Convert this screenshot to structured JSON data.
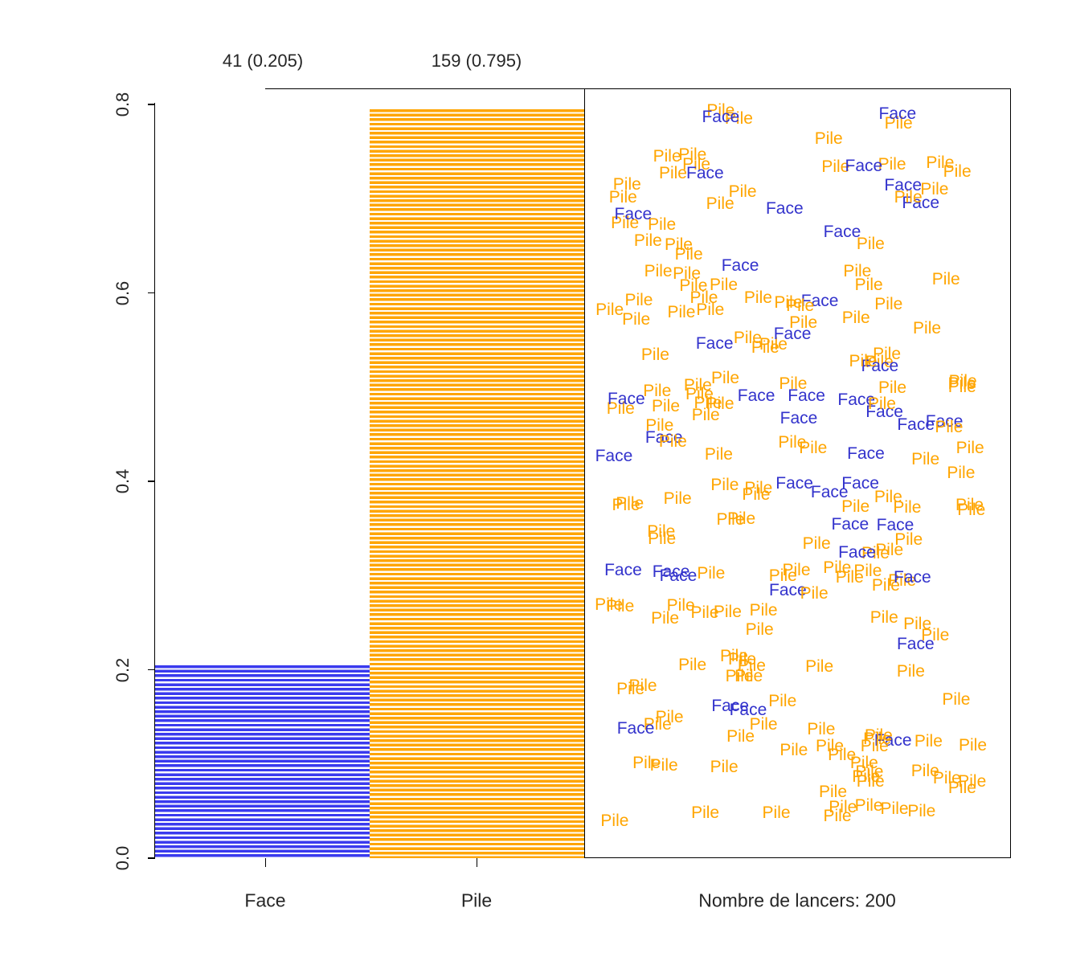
{
  "chart_data": {
    "type": "bar",
    "title": "",
    "categories": [
      "Face",
      "Pile"
    ],
    "values": [
      0.205,
      0.795
    ],
    "counts": [
      41,
      159
    ],
    "bar_labels": [
      "41 (0.205)",
      "159 (0.795)"
    ],
    "bar_colors": [
      "#3a3aee",
      "#ffa500"
    ],
    "ylim": [
      0,
      0.8
    ],
    "ytick_labels": [
      "0.0",
      "0.2",
      "0.4",
      "0.6",
      "0.8"
    ],
    "grid": false,
    "legend_position": "none",
    "scatter_panel": {
      "caption": "Nombre de lancers: 200",
      "total": 200,
      "words": [
        {
          "label": "Pile",
          "count": 159,
          "color": "#ffa500"
        },
        {
          "label": "Face",
          "count": 41,
          "color": "#3333cc"
        }
      ]
    }
  }
}
